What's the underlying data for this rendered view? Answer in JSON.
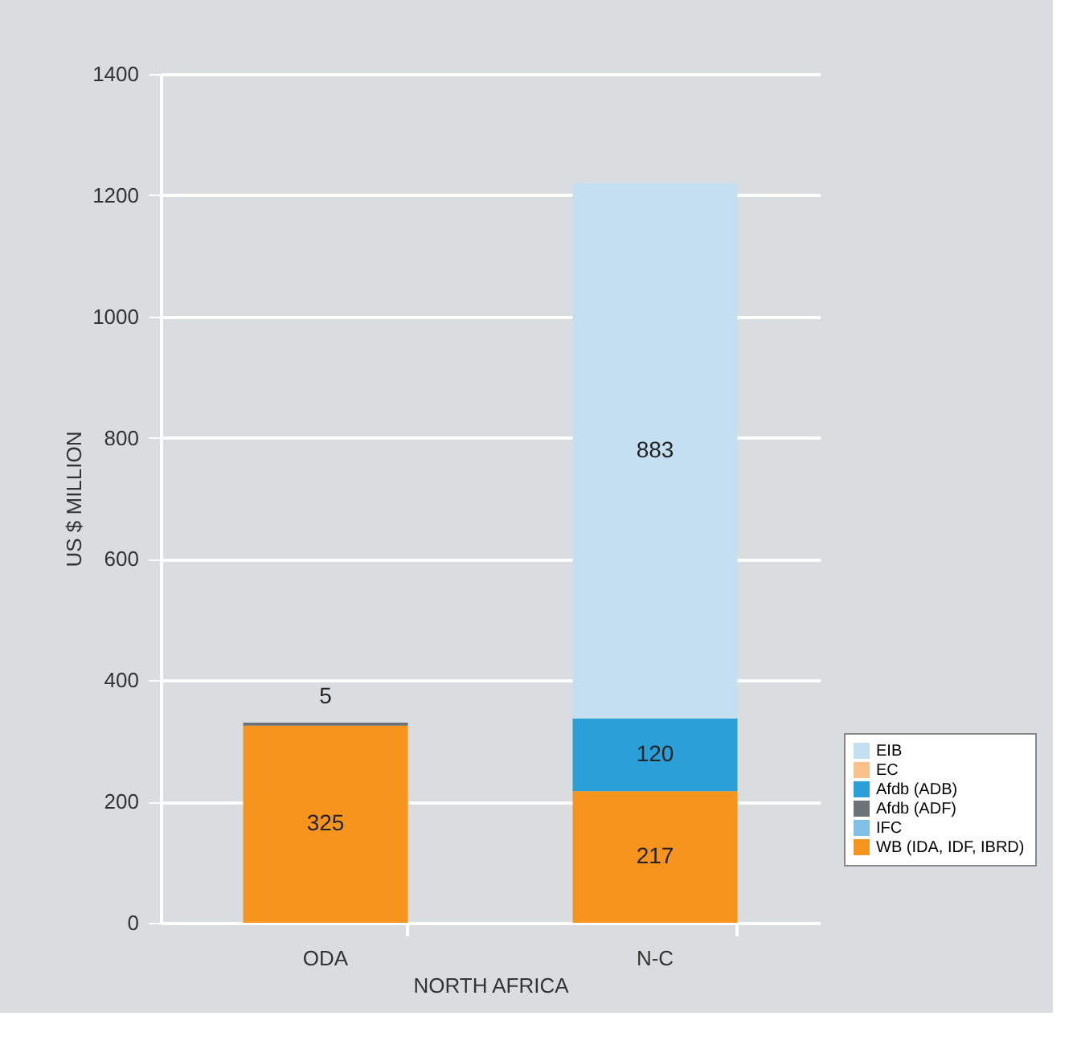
{
  "chart_data": {
    "type": "bar",
    "stacked": true,
    "xlabel": "NORTH AFRICA",
    "ylabel": "US $ MILLION",
    "categories": [
      "ODA",
      "N-C"
    ],
    "series": [
      {
        "name": "WB (IDA, IDF, IBRD)",
        "color": "#f7941d",
        "values": [
          325,
          217
        ]
      },
      {
        "name": "IFC",
        "color": "#82c1e6",
        "values": [
          null,
          null
        ]
      },
      {
        "name": "Afdb (ADF)",
        "color": "#6d7276",
        "values": [
          5,
          null
        ]
      },
      {
        "name": "Afdb (ADB)",
        "color": "#2a9fd8",
        "values": [
          null,
          120
        ]
      },
      {
        "name": "EC",
        "color": "#f9c08a",
        "values": [
          null,
          null
        ]
      },
      {
        "name": "EIB",
        "color": "#c5dff2",
        "values": [
          null,
          883
        ]
      }
    ],
    "ylim": [
      0,
      1400
    ],
    "yticks": [
      0,
      200,
      400,
      600,
      800,
      1000,
      1200,
      1400
    ],
    "grid": "y",
    "legend": "bottom right",
    "data_labels": true
  }
}
